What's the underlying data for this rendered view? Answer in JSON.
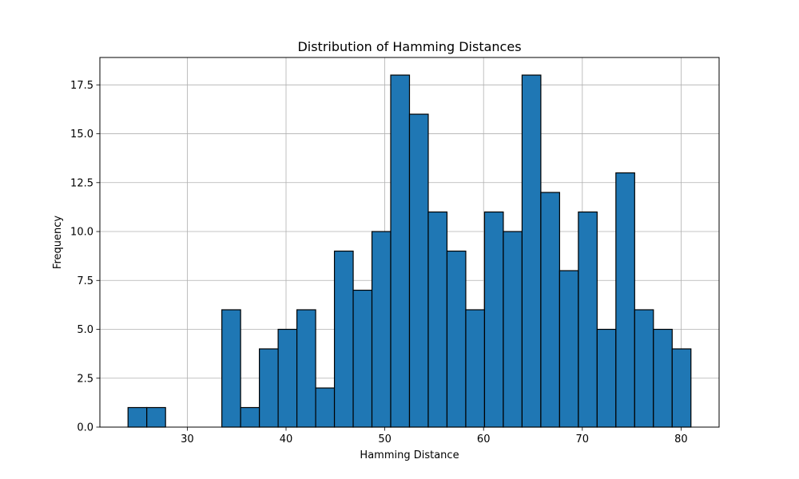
{
  "chart_data": {
    "type": "bar",
    "title": "Distribution of Hamming Distances",
    "xlabel": "Hamming Distance",
    "ylabel": "Frequency",
    "xlim": [
      21.15,
      83.85
    ],
    "ylim": [
      0,
      18.9
    ],
    "xticks": [
      30,
      40,
      50,
      60,
      70,
      80
    ],
    "yticks": [
      "0.0",
      "2.5",
      "5.0",
      "7.5",
      "10.0",
      "12.5",
      "15.0",
      "17.5"
    ],
    "grid": true,
    "bar_color": "#1f77b4",
    "edge_color": "#000000",
    "bins": [
      {
        "start": 24.0,
        "end": 25.9,
        "count": 1
      },
      {
        "start": 25.9,
        "end": 27.8,
        "count": 1
      },
      {
        "start": 27.8,
        "end": 29.7,
        "count": 0
      },
      {
        "start": 29.7,
        "end": 31.6,
        "count": 0
      },
      {
        "start": 31.6,
        "end": 33.5,
        "count": 0
      },
      {
        "start": 33.5,
        "end": 35.4,
        "count": 6
      },
      {
        "start": 35.4,
        "end": 37.3,
        "count": 1
      },
      {
        "start": 37.3,
        "end": 39.2,
        "count": 4
      },
      {
        "start": 39.2,
        "end": 41.1,
        "count": 5
      },
      {
        "start": 41.1,
        "end": 43.0,
        "count": 6
      },
      {
        "start": 43.0,
        "end": 44.9,
        "count": 2
      },
      {
        "start": 44.9,
        "end": 46.8,
        "count": 9
      },
      {
        "start": 46.8,
        "end": 48.7,
        "count": 7
      },
      {
        "start": 48.7,
        "end": 50.6,
        "count": 10
      },
      {
        "start": 50.6,
        "end": 52.5,
        "count": 18
      },
      {
        "start": 52.5,
        "end": 54.4,
        "count": 16
      },
      {
        "start": 54.4,
        "end": 56.3,
        "count": 11
      },
      {
        "start": 56.3,
        "end": 58.2,
        "count": 9
      },
      {
        "start": 58.2,
        "end": 60.1,
        "count": 6
      },
      {
        "start": 60.1,
        "end": 62.0,
        "count": 11
      },
      {
        "start": 62.0,
        "end": 63.9,
        "count": 10
      },
      {
        "start": 63.9,
        "end": 65.8,
        "count": 18
      },
      {
        "start": 65.8,
        "end": 67.7,
        "count": 12
      },
      {
        "start": 67.7,
        "end": 69.6,
        "count": 8
      },
      {
        "start": 69.6,
        "end": 71.5,
        "count": 11
      },
      {
        "start": 71.5,
        "end": 73.4,
        "count": 5
      },
      {
        "start": 73.4,
        "end": 75.3,
        "count": 13
      },
      {
        "start": 75.3,
        "end": 77.2,
        "count": 6
      },
      {
        "start": 77.2,
        "end": 79.1,
        "count": 5
      },
      {
        "start": 79.1,
        "end": 81.0,
        "count": 4
      }
    ]
  }
}
